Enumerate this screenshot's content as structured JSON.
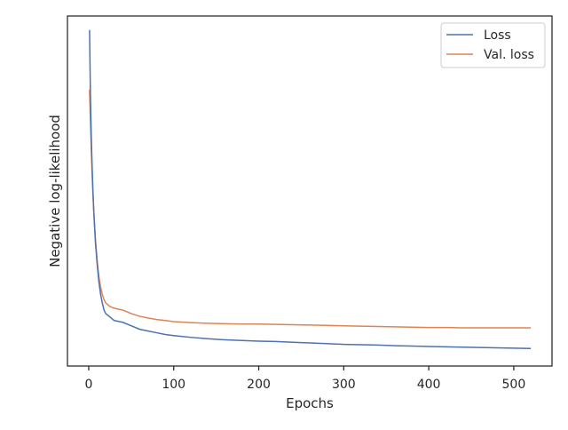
{
  "chart_data": {
    "type": "line",
    "title": "",
    "xlabel": "Epochs",
    "ylabel": "Negative log-likelihood",
    "xlim": [
      -25,
      545
    ],
    "ylim": [
      0.0,
      1.0
    ],
    "x_ticks": [
      0,
      100,
      200,
      300,
      400,
      500
    ],
    "grid": false,
    "legend_position": "top-right",
    "series": [
      {
        "name": "Loss",
        "color": "#4c72b0",
        "x": [
          1,
          2,
          3,
          4,
          5,
          6,
          8,
          10,
          12,
          14,
          16,
          18,
          20,
          25,
          30,
          40,
          50,
          60,
          70,
          80,
          90,
          100,
          120,
          140,
          160,
          180,
          200,
          220,
          240,
          260,
          280,
          300,
          320,
          340,
          360,
          380,
          400,
          420,
          440,
          460,
          480,
          500,
          520
        ],
        "y": [
          0.96,
          0.78,
          0.66,
          0.57,
          0.5,
          0.44,
          0.35,
          0.29,
          0.24,
          0.205,
          0.18,
          0.16,
          0.15,
          0.14,
          0.13,
          0.125,
          0.115,
          0.105,
          0.1,
          0.095,
          0.09,
          0.087,
          0.082,
          0.078,
          0.075,
          0.073,
          0.071,
          0.07,
          0.068,
          0.066,
          0.064,
          0.062,
          0.061,
          0.06,
          0.058,
          0.057,
          0.056,
          0.055,
          0.054,
          0.053,
          0.052,
          0.051,
          0.05
        ]
      },
      {
        "name": "Val. loss",
        "color": "#dd8452",
        "x": [
          1,
          2,
          3,
          4,
          5,
          6,
          8,
          10,
          12,
          14,
          16,
          18,
          20,
          25,
          30,
          40,
          50,
          60,
          70,
          80,
          90,
          100,
          120,
          140,
          160,
          180,
          200,
          220,
          240,
          260,
          280,
          300,
          320,
          340,
          360,
          380,
          400,
          420,
          440,
          460,
          480,
          500,
          520
        ],
        "y": [
          0.79,
          0.7,
          0.62,
          0.55,
          0.49,
          0.44,
          0.36,
          0.3,
          0.255,
          0.225,
          0.205,
          0.19,
          0.18,
          0.17,
          0.165,
          0.16,
          0.15,
          0.142,
          0.137,
          0.133,
          0.13,
          0.127,
          0.124,
          0.122,
          0.121,
          0.12,
          0.12,
          0.119,
          0.118,
          0.117,
          0.116,
          0.115,
          0.114,
          0.113,
          0.112,
          0.111,
          0.11,
          0.11,
          0.109,
          0.109,
          0.109,
          0.109,
          0.109
        ]
      }
    ]
  }
}
